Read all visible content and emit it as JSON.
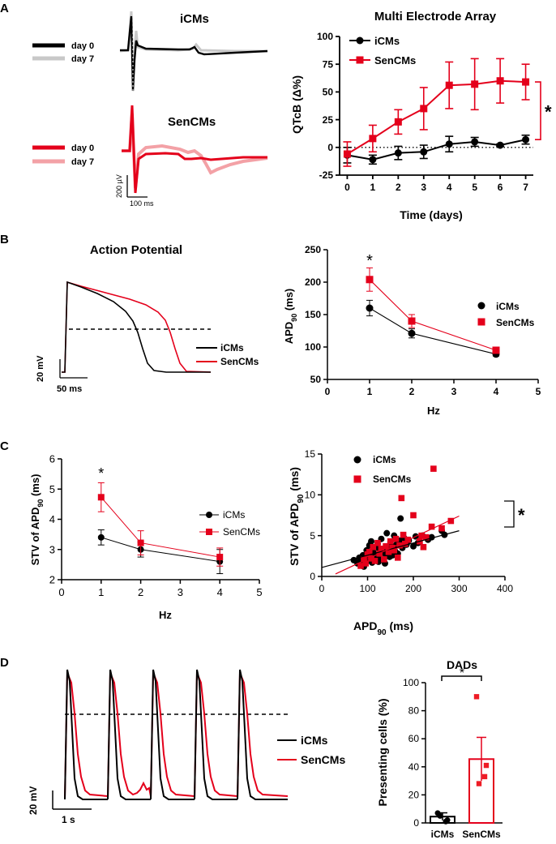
{
  "colors": {
    "ctrl": "#000000",
    "sen": "#e4001b",
    "ctrl_light": "#c8c8c8",
    "sen_light": "#f3a1a6",
    "sen_cell": "#ee1c25"
  },
  "panel_labels": [
    "A",
    "B",
    "C",
    "D"
  ],
  "panelA": {
    "traces": {
      "top_title": "iCMs",
      "bottom_title": "SenCMs",
      "top_legend": [
        "day 0",
        "day 7"
      ],
      "bottom_legend": [
        "day 0",
        "day 7"
      ],
      "scale_v": "200 µV",
      "scale_t": "100 ms"
    },
    "mea": {
      "type": "line",
      "title": "Multi Electrode Array",
      "xlabel": "Time (days)",
      "ylabel": "QTcB (Δ%)",
      "x": [
        0,
        1,
        2,
        3,
        4,
        5,
        6,
        7
      ],
      "xlim": [
        -0.3,
        7.3
      ],
      "ylim": [
        -25,
        100
      ],
      "xticks": [
        0,
        1,
        2,
        3,
        4,
        5,
        6,
        7
      ],
      "yticks": [
        -25,
        0,
        25,
        50,
        75,
        100
      ],
      "series": [
        {
          "name": "iCMs",
          "marker": "circle",
          "color": "ctrl",
          "values": [
            -7,
            -11,
            -5,
            -4,
            3,
            5,
            2,
            7
          ],
          "err": [
            7,
            4,
            6,
            6,
            7,
            4,
            1,
            4
          ]
        },
        {
          "name": "SenCMs",
          "marker": "square",
          "color": "sen",
          "values": [
            -6,
            8,
            23,
            35,
            56,
            57,
            60,
            59
          ],
          "err": [
            11,
            12,
            11,
            19,
            21,
            23,
            20,
            16
          ]
        }
      ],
      "significance": "*"
    }
  },
  "panelB": {
    "ap": {
      "title": "Action Potential",
      "legend": [
        "iCMs",
        "SenCMs"
      ],
      "scale_v": "20 mV",
      "scale_t": "50 ms"
    },
    "apd": {
      "type": "line",
      "xlabel": "Hz",
      "ylabel_main": "APD",
      "ylabel_sub": "90",
      "ylabel_unit": " (ms)",
      "x": [
        1,
        2,
        4
      ],
      "xlim": [
        0,
        5
      ],
      "ylim": [
        50,
        250
      ],
      "xticks": [
        0,
        1,
        2,
        3,
        4,
        5
      ],
      "yticks": [
        50,
        100,
        150,
        200,
        250
      ],
      "series": [
        {
          "name": "iCMs",
          "marker": "circle",
          "color": "ctrl",
          "values": [
            160,
            121,
            89
          ],
          "err": [
            12,
            7,
            3
          ]
        },
        {
          "name": "SenCMs",
          "marker": "square",
          "color": "sen",
          "values": [
            204,
            140,
            95
          ],
          "err": [
            18,
            10,
            4
          ]
        }
      ],
      "significance": "*"
    }
  },
  "panelC": {
    "stv": {
      "type": "line",
      "xlabel": "Hz",
      "ylabel_main": "STV of APD",
      "ylabel_sub": "90",
      "ylabel_unit": " (ms)",
      "x": [
        1,
        2,
        4
      ],
      "xlim": [
        0,
        5
      ],
      "ylim": [
        2,
        6
      ],
      "xticks": [
        0,
        1,
        2,
        3,
        4,
        5
      ],
      "yticks": [
        2,
        3,
        4,
        5,
        6
      ],
      "series": [
        {
          "name": "iCMs",
          "marker": "circle",
          "color": "ctrl",
          "values": [
            3.4,
            3.0,
            2.6
          ],
          "err": [
            0.25,
            0.25,
            0.4
          ]
        },
        {
          "name": "SenCMs",
          "marker": "square",
          "color": "sen",
          "values": [
            4.73,
            3.22,
            2.75
          ],
          "err": [
            0.48,
            0.4,
            0.3
          ]
        }
      ],
      "significance": "*"
    },
    "scatter": {
      "type": "scatter",
      "xlabel_main": "APD",
      "xlabel_sub": "90",
      "xlabel_unit": " (ms)",
      "ylabel_main": "STV of APD",
      "ylabel_sub": "90",
      "ylabel_unit": " (ms)",
      "xlim": [
        0,
        400
      ],
      "ylim": [
        0,
        15
      ],
      "xticks": [
        0,
        100,
        200,
        300,
        400
      ],
      "yticks": [
        0,
        5,
        10,
        15
      ],
      "series": [
        {
          "name": "iCMs",
          "marker": "circle",
          "color": "ctrl",
          "fit": [
            [
              0,
              1.1
            ],
            [
              300,
              5.6
            ]
          ],
          "points": [
            [
              70,
              2.0
            ],
            [
              78,
              1.6
            ],
            [
              82,
              2.3
            ],
            [
              85,
              1.4
            ],
            [
              88,
              1.8
            ],
            [
              90,
              2.6
            ],
            [
              92,
              1.2
            ],
            [
              95,
              2.2
            ],
            [
              98,
              3.2
            ],
            [
              100,
              1.9
            ],
            [
              102,
              2.8
            ],
            [
              104,
              3.8
            ],
            [
              106,
              2.4
            ],
            [
              108,
              4.3
            ],
            [
              110,
              1.7
            ],
            [
              112,
              3.0
            ],
            [
              115,
              2.3
            ],
            [
              118,
              3.6
            ],
            [
              120,
              2.6
            ],
            [
              122,
              4.0
            ],
            [
              124,
              1.8
            ],
            [
              126,
              3.1
            ],
            [
              128,
              2.2
            ],
            [
              130,
              4.6
            ],
            [
              133,
              2.9
            ],
            [
              136,
              3.4
            ],
            [
              138,
              1.6
            ],
            [
              140,
              2.7
            ],
            [
              142,
              5.3
            ],
            [
              145,
              3.3
            ],
            [
              148,
              2.4
            ],
            [
              150,
              4.2
            ],
            [
              152,
              3.6
            ],
            [
              155,
              2.6
            ],
            [
              158,
              5.0
            ],
            [
              160,
              3.1
            ],
            [
              163,
              3.9
            ],
            [
              166,
              2.8
            ],
            [
              170,
              4.4
            ],
            [
              172,
              7.1
            ],
            [
              176,
              3.5
            ],
            [
              180,
              4.7
            ],
            [
              185,
              3.9
            ],
            [
              190,
              4.4
            ],
            [
              200,
              3.7
            ],
            [
              205,
              4.9
            ],
            [
              210,
              4.1
            ],
            [
              220,
              5.0
            ],
            [
              232,
              4.5
            ],
            [
              240,
              4.8
            ],
            [
              262,
              5.6
            ],
            [
              268,
              5.1
            ]
          ]
        },
        {
          "name": "SenCMs",
          "marker": "square",
          "color": "sen",
          "fit": [
            [
              30,
              0.3
            ],
            [
              300,
              7.4
            ]
          ],
          "points": [
            [
              85,
              1.3
            ],
            [
              92,
              2.1
            ],
            [
              96,
              1.6
            ],
            [
              100,
              2.7
            ],
            [
              104,
              3.0
            ],
            [
              108,
              2.2
            ],
            [
              112,
              3.6
            ],
            [
              116,
              1.9
            ],
            [
              122,
              4.1
            ],
            [
              126,
              2.8
            ],
            [
              130,
              3.4
            ],
            [
              136,
              2.1
            ],
            [
              140,
              3.7
            ],
            [
              146,
              3.0
            ],
            [
              150,
              4.3
            ],
            [
              154,
              3.5
            ],
            [
              158,
              3.2
            ],
            [
              162,
              4.6
            ],
            [
              166,
              2.3
            ],
            [
              170,
              3.8
            ],
            [
              174,
              9.6
            ],
            [
              178,
              5.1
            ],
            [
              182,
              4.0
            ],
            [
              188,
              4.5
            ],
            [
              200,
              7.5
            ],
            [
              214,
              4.3
            ],
            [
              218,
              5.0
            ],
            [
              222,
              3.6
            ],
            [
              228,
              4.8
            ],
            [
              240,
              6.1
            ],
            [
              244,
              13.2
            ],
            [
              262,
              5.9
            ],
            [
              282,
              6.8
            ]
          ]
        }
      ],
      "significance": "*"
    }
  },
  "panelD": {
    "traces": {
      "legend": [
        "iCMs",
        "SenCMs"
      ],
      "scale_v": "20 mV",
      "scale_t": "1 s"
    },
    "dads": {
      "type": "bar",
      "title": "DADs",
      "ylabel": "Presenting cells (%)",
      "categories": [
        "iCMs",
        "SenCMs"
      ],
      "ylim": [
        0,
        100
      ],
      "yticks": [
        0,
        20,
        40,
        60,
        80,
        100
      ],
      "values": [
        4.5,
        45.5
      ],
      "err": [
        2.7,
        15.5
      ],
      "points": [
        [
          0,
          7
        ],
        [
          0,
          2
        ],
        [
          0,
          5
        ],
        [
          0,
          1
        ],
        [
          1,
          90
        ],
        [
          1,
          41
        ],
        [
          1,
          28
        ],
        [
          1,
          33
        ]
      ],
      "significance": "*"
    }
  }
}
